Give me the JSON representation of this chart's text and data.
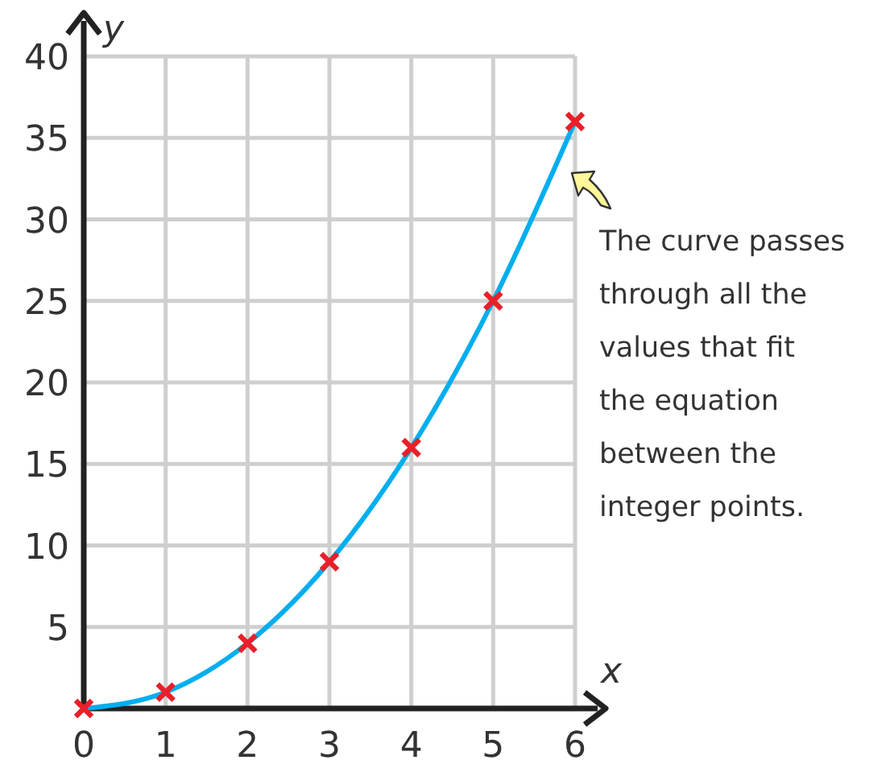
{
  "chart_data": {
    "type": "line",
    "xlabel": "x",
    "ylabel": "y",
    "xlim": [
      0,
      6
    ],
    "ylim": [
      0,
      40
    ],
    "xticks": [
      0,
      1,
      2,
      3,
      4,
      5,
      6
    ],
    "yticks": [
      5,
      10,
      15,
      20,
      25,
      30,
      35,
      40
    ],
    "grid": true,
    "series": [
      {
        "color": "#00aeef",
        "x": [
          0,
          1,
          2,
          3,
          4,
          5,
          6
        ],
        "values": [
          0,
          1,
          4,
          9,
          16,
          25,
          36
        ],
        "marker": "none",
        "line_style": "solid"
      },
      {
        "type": "scatter",
        "color": "#e8202a",
        "x": [
          0,
          1,
          2,
          3,
          4,
          5,
          6
        ],
        "values": [
          0,
          1,
          4,
          9,
          16,
          25,
          36
        ],
        "marker": "cross"
      }
    ],
    "annotations": [
      "The curve passes through all the values that fit the equation between the integer points."
    ]
  }
}
